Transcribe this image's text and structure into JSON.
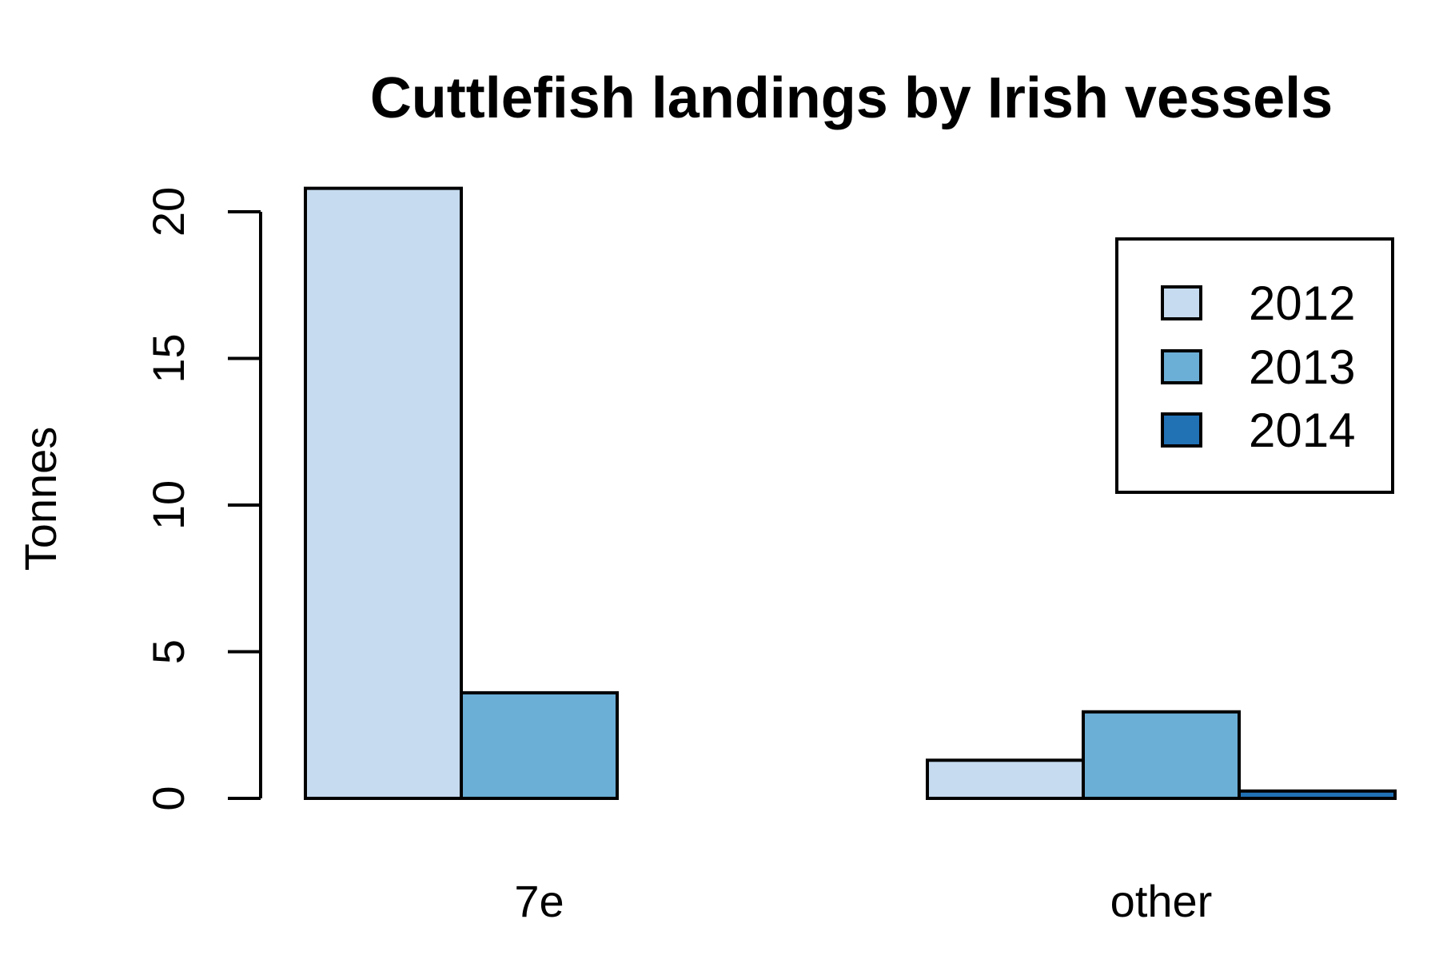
{
  "chart_data": {
    "type": "bar",
    "title": "Cuttlefish landings by Irish vessels",
    "xlabel": "",
    "ylabel": "Tonnes",
    "categories": [
      "7e",
      "other"
    ],
    "series": [
      {
        "name": "2012",
        "color": "#c6dbef",
        "values": [
          20.8,
          1.3
        ]
      },
      {
        "name": "2013",
        "color": "#6baed6",
        "values": [
          3.6,
          2.95
        ]
      },
      {
        "name": "2014",
        "color": "#2171b5",
        "values": [
          0.0,
          0.25
        ]
      }
    ],
    "ylim": [
      0,
      20
    ],
    "yticks": [
      "0",
      "5",
      "10",
      "15",
      "20"
    ],
    "legend": {
      "position": "top-right",
      "entries": [
        "2012",
        "2013",
        "2014"
      ]
    },
    "grid": false
  }
}
